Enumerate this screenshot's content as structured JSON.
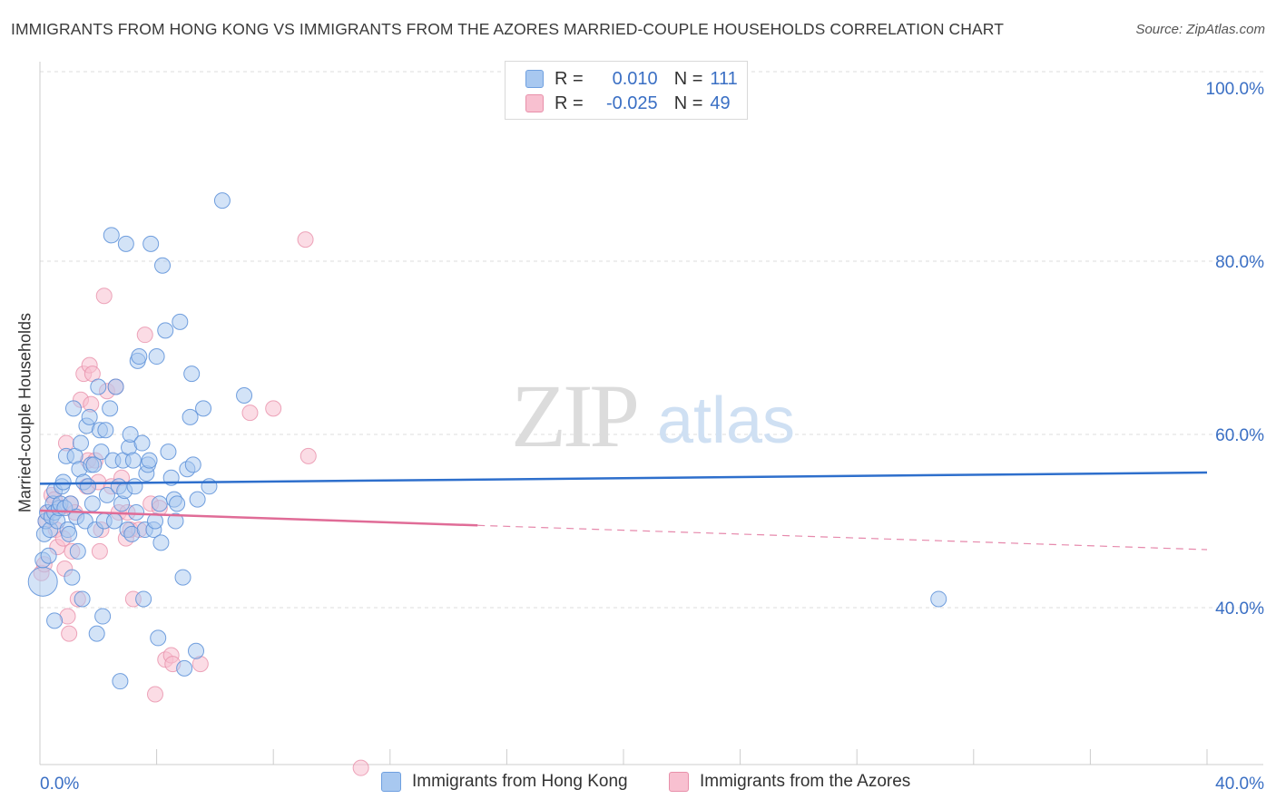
{
  "title": "IMMIGRANTS FROM HONG KONG VS IMMIGRANTS FROM THE AZORES MARRIED-COUPLE HOUSEHOLDS CORRELATION CHART",
  "source": "Source: ZipAtlas.com",
  "watermark": {
    "zip": "ZIP",
    "atlas": "atlas"
  },
  "legend": {
    "r_label": "R =",
    "n_label": "N =",
    "rows": [
      {
        "r": "0.010",
        "n": "111",
        "color": "#a8c8f0",
        "border": "#6fa0e0"
      },
      {
        "r": "-0.025",
        "n": "49",
        "color": "#f8c0d0",
        "border": "#e890aa"
      }
    ]
  },
  "bottom_legend": [
    {
      "label": "Immigrants from Hong Kong",
      "color": "#a8c8f0",
      "border": "#6fa0e0"
    },
    {
      "label": "Immigrants from the Azores",
      "color": "#f8c0d0",
      "border": "#e890aa"
    }
  ],
  "chart_data": {
    "type": "scatter",
    "title": "IMMIGRANTS FROM HONG KONG VS IMMIGRANTS FROM THE AZORES MARRIED-COUPLE HOUSEHOLDS CORRELATION CHART",
    "xlabel": "",
    "ylabel": "Married-couple Households",
    "xlim": [
      0,
      40
    ],
    "ylim": [
      22,
      102
    ],
    "x_tick_labels": [
      "0.0%",
      "40.0%"
    ],
    "y_ticks": [
      40,
      60,
      80,
      100
    ],
    "y_tick_labels": [
      "40.0%",
      "60.0%",
      "80.0%",
      "100.0%"
    ],
    "grid": true,
    "colors": {
      "hk": "#5b8fd8",
      "hk_fill": "#a8c8f0",
      "az": "#e890aa",
      "az_fill": "#f8c0d0",
      "hk_line": "#2e6fcc",
      "az_line": "#e06c97",
      "tick_text": "#3a6fc4"
    },
    "series": [
      {
        "name": "Immigrants from Hong Kong",
        "trend": {
          "x": [
            0,
            40
          ],
          "y": [
            54.3,
            55.6
          ],
          "style": "solid"
        },
        "points": [
          [
            0.1,
            43
          ],
          [
            0.1,
            45.5
          ],
          [
            0.15,
            48.5
          ],
          [
            0.2,
            50
          ],
          [
            0.25,
            51
          ],
          [
            0.3,
            46
          ],
          [
            0.35,
            49
          ],
          [
            0.4,
            50.5
          ],
          [
            0.45,
            52
          ],
          [
            0.5,
            51
          ],
          [
            0.5,
            53.5
          ],
          [
            0.5,
            38.5
          ],
          [
            0.6,
            50
          ],
          [
            0.65,
            51.5
          ],
          [
            0.7,
            52
          ],
          [
            0.75,
            54
          ],
          [
            0.8,
            54.5
          ],
          [
            0.85,
            51.5
          ],
          [
            0.9,
            57.5
          ],
          [
            0.95,
            49
          ],
          [
            1.0,
            48.5
          ],
          [
            1.05,
            52
          ],
          [
            1.1,
            43.5
          ],
          [
            1.15,
            63
          ],
          [
            1.2,
            57.5
          ],
          [
            1.25,
            50.5
          ],
          [
            1.3,
            46.5
          ],
          [
            1.35,
            56
          ],
          [
            1.4,
            59
          ],
          [
            1.45,
            41
          ],
          [
            1.5,
            54.5
          ],
          [
            1.55,
            50
          ],
          [
            1.6,
            61
          ],
          [
            1.65,
            54
          ],
          [
            1.7,
            62
          ],
          [
            1.75,
            56.5
          ],
          [
            1.8,
            52
          ],
          [
            1.85,
            56.5
          ],
          [
            1.9,
            49
          ],
          [
            1.95,
            37
          ],
          [
            2.0,
            65.5
          ],
          [
            2.05,
            60.5
          ],
          [
            2.1,
            58
          ],
          [
            2.15,
            39
          ],
          [
            2.2,
            50
          ],
          [
            2.25,
            60.5
          ],
          [
            2.3,
            53
          ],
          [
            2.4,
            63
          ],
          [
            2.45,
            83
          ],
          [
            2.5,
            57
          ],
          [
            2.55,
            50
          ],
          [
            2.6,
            65.5
          ],
          [
            2.7,
            54
          ],
          [
            2.75,
            31.5
          ],
          [
            2.8,
            52
          ],
          [
            2.85,
            57
          ],
          [
            2.9,
            53.5
          ],
          [
            2.95,
            82
          ],
          [
            3.0,
            49
          ],
          [
            3.05,
            58.5
          ],
          [
            3.1,
            60
          ],
          [
            3.15,
            48.5
          ],
          [
            3.2,
            57
          ],
          [
            3.25,
            54
          ],
          [
            3.3,
            51
          ],
          [
            3.35,
            68.5
          ],
          [
            3.4,
            69
          ],
          [
            3.5,
            59
          ],
          [
            3.55,
            41
          ],
          [
            3.6,
            49
          ],
          [
            3.65,
            55.5
          ],
          [
            3.7,
            56.5
          ],
          [
            3.75,
            57
          ],
          [
            3.8,
            82
          ],
          [
            3.9,
            49
          ],
          [
            3.95,
            50
          ],
          [
            4.0,
            69
          ],
          [
            4.05,
            36.5
          ],
          [
            4.1,
            52
          ],
          [
            4.15,
            47.5
          ],
          [
            4.2,
            79.5
          ],
          [
            4.3,
            72
          ],
          [
            4.4,
            58
          ],
          [
            4.5,
            55
          ],
          [
            4.6,
            52.5
          ],
          [
            4.65,
            50
          ],
          [
            4.7,
            52
          ],
          [
            4.8,
            73
          ],
          [
            4.9,
            43.5
          ],
          [
            4.95,
            33
          ],
          [
            5.05,
            56
          ],
          [
            5.15,
            62
          ],
          [
            5.2,
            67
          ],
          [
            5.25,
            56.5
          ],
          [
            5.35,
            35
          ],
          [
            5.4,
            52.5
          ],
          [
            5.6,
            63
          ],
          [
            5.8,
            54
          ],
          [
            6.25,
            87
          ],
          [
            7.0,
            64.5
          ],
          [
            30.8,
            41
          ]
        ]
      },
      {
        "name": "Immigrants from the Azores",
        "trend": {
          "x": [
            0,
            15
          ],
          "y": [
            51.2,
            49.5
          ],
          "style": "solid",
          "extended": {
            "x": [
              15,
              40
            ],
            "y": [
              49.5,
              46.7
            ],
            "style": "dashed"
          }
        },
        "points": [
          [
            0.05,
            44
          ],
          [
            0.15,
            45
          ],
          [
            0.2,
            50
          ],
          [
            0.3,
            51
          ],
          [
            0.4,
            53
          ],
          [
            0.5,
            52.5
          ],
          [
            0.55,
            49
          ],
          [
            0.6,
            47
          ],
          [
            0.7,
            51.5
          ],
          [
            0.8,
            48
          ],
          [
            0.85,
            44.5
          ],
          [
            0.9,
            59
          ],
          [
            0.95,
            39
          ],
          [
            1.0,
            37
          ],
          [
            1.05,
            52
          ],
          [
            1.1,
            46.5
          ],
          [
            1.2,
            51
          ],
          [
            1.3,
            41
          ],
          [
            1.4,
            64
          ],
          [
            1.5,
            67
          ],
          [
            1.6,
            54
          ],
          [
            1.65,
            57
          ],
          [
            1.7,
            68
          ],
          [
            1.75,
            63.5
          ],
          [
            1.8,
            67
          ],
          [
            1.9,
            57
          ],
          [
            2.0,
            54.5
          ],
          [
            2.05,
            46.5
          ],
          [
            2.1,
            49
          ],
          [
            2.2,
            76
          ],
          [
            2.3,
            65
          ],
          [
            2.45,
            54
          ],
          [
            2.6,
            65.5
          ],
          [
            2.7,
            51
          ],
          [
            2.8,
            55
          ],
          [
            2.95,
            48
          ],
          [
            3.0,
            51
          ],
          [
            3.1,
            49
          ],
          [
            3.2,
            41
          ],
          [
            3.4,
            49
          ],
          [
            3.6,
            71.5
          ],
          [
            3.8,
            52
          ],
          [
            3.95,
            30
          ],
          [
            4.1,
            51.5
          ],
          [
            4.3,
            34
          ],
          [
            4.5,
            34.5
          ],
          [
            4.55,
            33.5
          ],
          [
            5.5,
            33.5
          ],
          [
            7.2,
            62.5
          ],
          [
            8.0,
            63
          ],
          [
            9.1,
            82.5
          ],
          [
            9.2,
            57.5
          ],
          [
            11.0,
            21.5
          ]
        ]
      }
    ]
  }
}
